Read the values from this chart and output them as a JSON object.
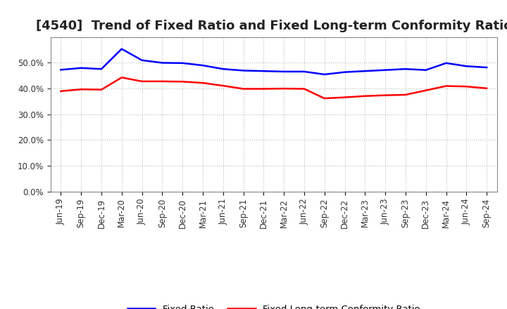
{
  "title": "[4540]  Trend of Fixed Ratio and Fixed Long-term Conformity Ratio",
  "x_labels": [
    "Jun-19",
    "Sep-19",
    "Dec-19",
    "Mar-20",
    "Jun-20",
    "Sep-20",
    "Dec-20",
    "Mar-21",
    "Jun-21",
    "Sep-21",
    "Dec-21",
    "Mar-22",
    "Jun-22",
    "Sep-22",
    "Dec-22",
    "Mar-23",
    "Jun-23",
    "Sep-23",
    "Dec-23",
    "Mar-24",
    "Jun-24",
    "Sep-24"
  ],
  "fixed_ratio": [
    0.473,
    0.48,
    0.476,
    0.554,
    0.51,
    0.5,
    0.499,
    0.49,
    0.476,
    0.47,
    0.468,
    0.466,
    0.466,
    0.455,
    0.464,
    0.468,
    0.472,
    0.476,
    0.472,
    0.499,
    0.487,
    0.482
  ],
  "fixed_lt_ratio": [
    0.39,
    0.397,
    0.396,
    0.443,
    0.428,
    0.428,
    0.427,
    0.422,
    0.411,
    0.399,
    0.399,
    0.4,
    0.399,
    0.362,
    0.366,
    0.371,
    0.374,
    0.376,
    0.393,
    0.41,
    0.408,
    0.401
  ],
  "fixed_ratio_color": "#0000FF",
  "fixed_lt_ratio_color": "#FF0000",
  "ylim": [
    0.0,
    0.6
  ],
  "yticks": [
    0.0,
    0.1,
    0.2,
    0.3,
    0.4,
    0.5
  ],
  "background_color": "#FFFFFF",
  "plot_bg_color": "#FFFFFF",
  "grid_color": "#BBBBBB",
  "legend_fixed_ratio": "Fixed Ratio",
  "legend_fixed_lt_ratio": "Fixed Long-term Conformity Ratio",
  "title_fontsize": 13,
  "tick_fontsize": 8.5,
  "linewidth": 1.8
}
